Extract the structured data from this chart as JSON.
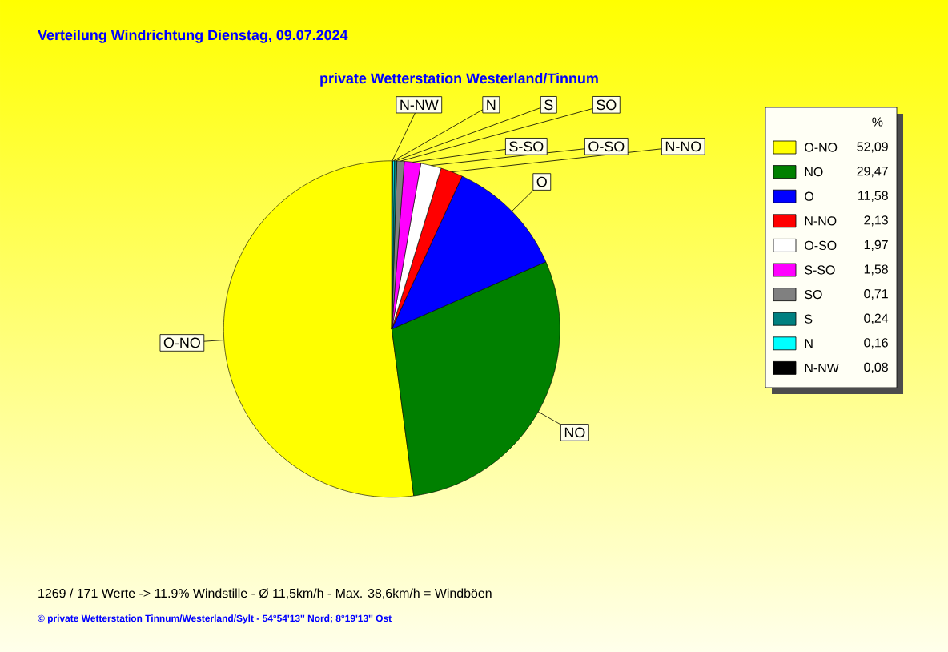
{
  "chart_data": {
    "type": "pie",
    "title": "Verteilung Windrichtung   Dienstag, 09.07.2024",
    "subtitle": "private Wetterstation Westerland/Tinnum",
    "legend_title": "%",
    "legend": "right",
    "categories": [
      "O-NO",
      "NO",
      "O",
      "N-NO",
      "O-SO",
      "S-SO",
      "SO",
      "S",
      "N",
      "N-NW"
    ],
    "values": [
      52.09,
      29.47,
      11.58,
      2.13,
      1.97,
      1.58,
      0.71,
      0.24,
      0.16,
      0.08
    ],
    "value_labels": [
      "52,09",
      "29,47",
      "11,58",
      "2,13",
      "1,97",
      "1,58",
      "0,71",
      "0,24",
      "0,16",
      "0,08"
    ],
    "colors": [
      "#ffff00",
      "#008000",
      "#0000ff",
      "#ff0000",
      "#ffffff",
      "#ff00ff",
      "#808080",
      "#008080",
      "#00ffff",
      "#000000"
    ],
    "annotations": [
      "1269 / 171 Werte  -> 11.9% Windstille   -   Ø 11,5km/h  -  Max. 38,6km/h = Windböen",
      "© private Wetterstation Tinnum/Westerland/Sylt  -  54°54'13'' Nord; 8°19'13'' Ost"
    ]
  }
}
